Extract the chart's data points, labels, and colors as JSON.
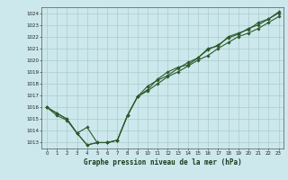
{
  "title": "Graphe pression niveau de la mer (hPa)",
  "bg_color": "#cce8ec",
  "grid_color": "#aacccc",
  "line_color": "#2d5a2d",
  "marker_color": "#2d5a2d",
  "xmin": -0.5,
  "xmax": 23.5,
  "ymin": 1012.5,
  "ymax": 1024.5,
  "yticks": [
    1013,
    1014,
    1015,
    1016,
    1017,
    1018,
    1019,
    1020,
    1021,
    1022,
    1023,
    1024
  ],
  "xticks": [
    0,
    1,
    2,
    3,
    4,
    5,
    6,
    7,
    8,
    9,
    10,
    11,
    12,
    13,
    14,
    15,
    16,
    17,
    18,
    19,
    20,
    21,
    22,
    23
  ],
  "line1_x": [
    0,
    1,
    2,
    3,
    4,
    5,
    6,
    7,
    8,
    9,
    10,
    11,
    12,
    13,
    14,
    15,
    16,
    17,
    18,
    19,
    20,
    21,
    22,
    23
  ],
  "line1_y": [
    1016.0,
    1015.5,
    1015.0,
    1013.8,
    1012.8,
    1013.0,
    1013.0,
    1013.2,
    1015.3,
    1016.9,
    1017.4,
    1018.0,
    1018.6,
    1019.0,
    1019.5,
    1020.0,
    1020.4,
    1021.0,
    1021.5,
    1022.0,
    1022.3,
    1022.7,
    1023.2,
    1023.7
  ],
  "line2_x": [
    0,
    1,
    2,
    3,
    4,
    5,
    6,
    7,
    8,
    9,
    10,
    11,
    12,
    13,
    14,
    15,
    16,
    17,
    18,
    19,
    20,
    21,
    22,
    23
  ],
  "line2_y": [
    1016.0,
    1015.5,
    1015.0,
    1013.8,
    1014.3,
    1013.0,
    1013.0,
    1013.2,
    1015.3,
    1016.9,
    1017.8,
    1018.3,
    1018.7,
    1019.3,
    1019.8,
    1020.2,
    1020.9,
    1021.3,
    1021.9,
    1022.2,
    1022.7,
    1023.0,
    1023.5,
    1024.0
  ],
  "line3_x": [
    0,
    1,
    2,
    3,
    4,
    5,
    6,
    7,
    8,
    9,
    10,
    11,
    12,
    13,
    14,
    15,
    16,
    17,
    18,
    19,
    20,
    21,
    22,
    23
  ],
  "line3_y": [
    1016.0,
    1015.3,
    1014.9,
    1013.8,
    1012.8,
    1013.0,
    1013.0,
    1013.2,
    1015.3,
    1016.9,
    1017.5,
    1018.4,
    1019.0,
    1019.4,
    1019.6,
    1020.2,
    1021.0,
    1021.2,
    1022.0,
    1022.3,
    1022.6,
    1023.2,
    1023.5,
    1024.1
  ]
}
